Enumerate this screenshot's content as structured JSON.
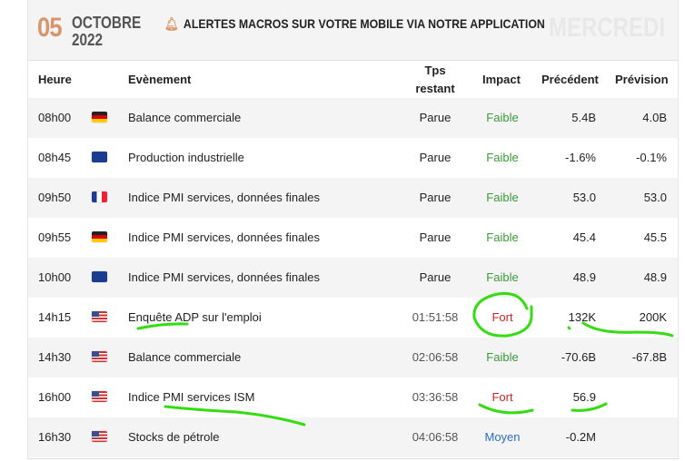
{
  "header": {
    "day": "05",
    "month": "OCTOBRE",
    "year": "2022",
    "alert": "ALERTES MACROS SUR VOTRE MOBILE VIA NOTRE APPLICATION",
    "weekday": "MERCREDI"
  },
  "columns": {
    "time": "Heure",
    "event": "Evènement",
    "remaining_1": "Tps",
    "remaining_2": "restant",
    "impact": "Impact",
    "previous": "Précédent",
    "forecast": "Prévision"
  },
  "colors": {
    "faible": "#3a9a3a",
    "fort": "#d62020",
    "moyen": "#2a6fc9",
    "annotation": "#33dd11"
  },
  "rows": [
    {
      "time": "08h00",
      "flag": "de",
      "event": "Balance commerciale",
      "remaining": "Parue",
      "impact": "Faible",
      "previous": "5.4B",
      "forecast": "4.0B"
    },
    {
      "time": "08h45",
      "flag": "eu",
      "event": "Production industrielle",
      "remaining": "Parue",
      "impact": "Faible",
      "previous": "-1.6%",
      "forecast": "-0.1%"
    },
    {
      "time": "09h50",
      "flag": "fr",
      "event": "Indice PMI services, données finales",
      "remaining": "Parue",
      "impact": "Faible",
      "previous": "53.0",
      "forecast": "53.0"
    },
    {
      "time": "09h55",
      "flag": "de",
      "event": "Indice PMI services, données finales",
      "remaining": "Parue",
      "impact": "Faible",
      "previous": "45.4",
      "forecast": "45.5"
    },
    {
      "time": "10h00",
      "flag": "eu",
      "event": "Indice PMI services, données finales",
      "remaining": "Parue",
      "impact": "Faible",
      "previous": "48.9",
      "forecast": "48.9"
    },
    {
      "time": "14h15",
      "flag": "us",
      "event": "Enquête ADP sur l'emploi",
      "remaining": "01:51:58",
      "impact": "Fort",
      "previous": "132K",
      "forecast": "200K"
    },
    {
      "time": "14h30",
      "flag": "us",
      "event": "Balance commerciale",
      "remaining": "02:06:58",
      "impact": "Faible",
      "previous": "-70.6B",
      "forecast": "-67.8B"
    },
    {
      "time": "16h00",
      "flag": "us",
      "event": "Indice PMI services ISM",
      "remaining": "03:36:58",
      "impact": "Fort",
      "previous": "56.9",
      "forecast": ""
    },
    {
      "time": "16h30",
      "flag": "us",
      "event": "Stocks de pétrole",
      "remaining": "04:06:58",
      "impact": "Moyen",
      "previous": "-0.2M",
      "forecast": ""
    }
  ]
}
